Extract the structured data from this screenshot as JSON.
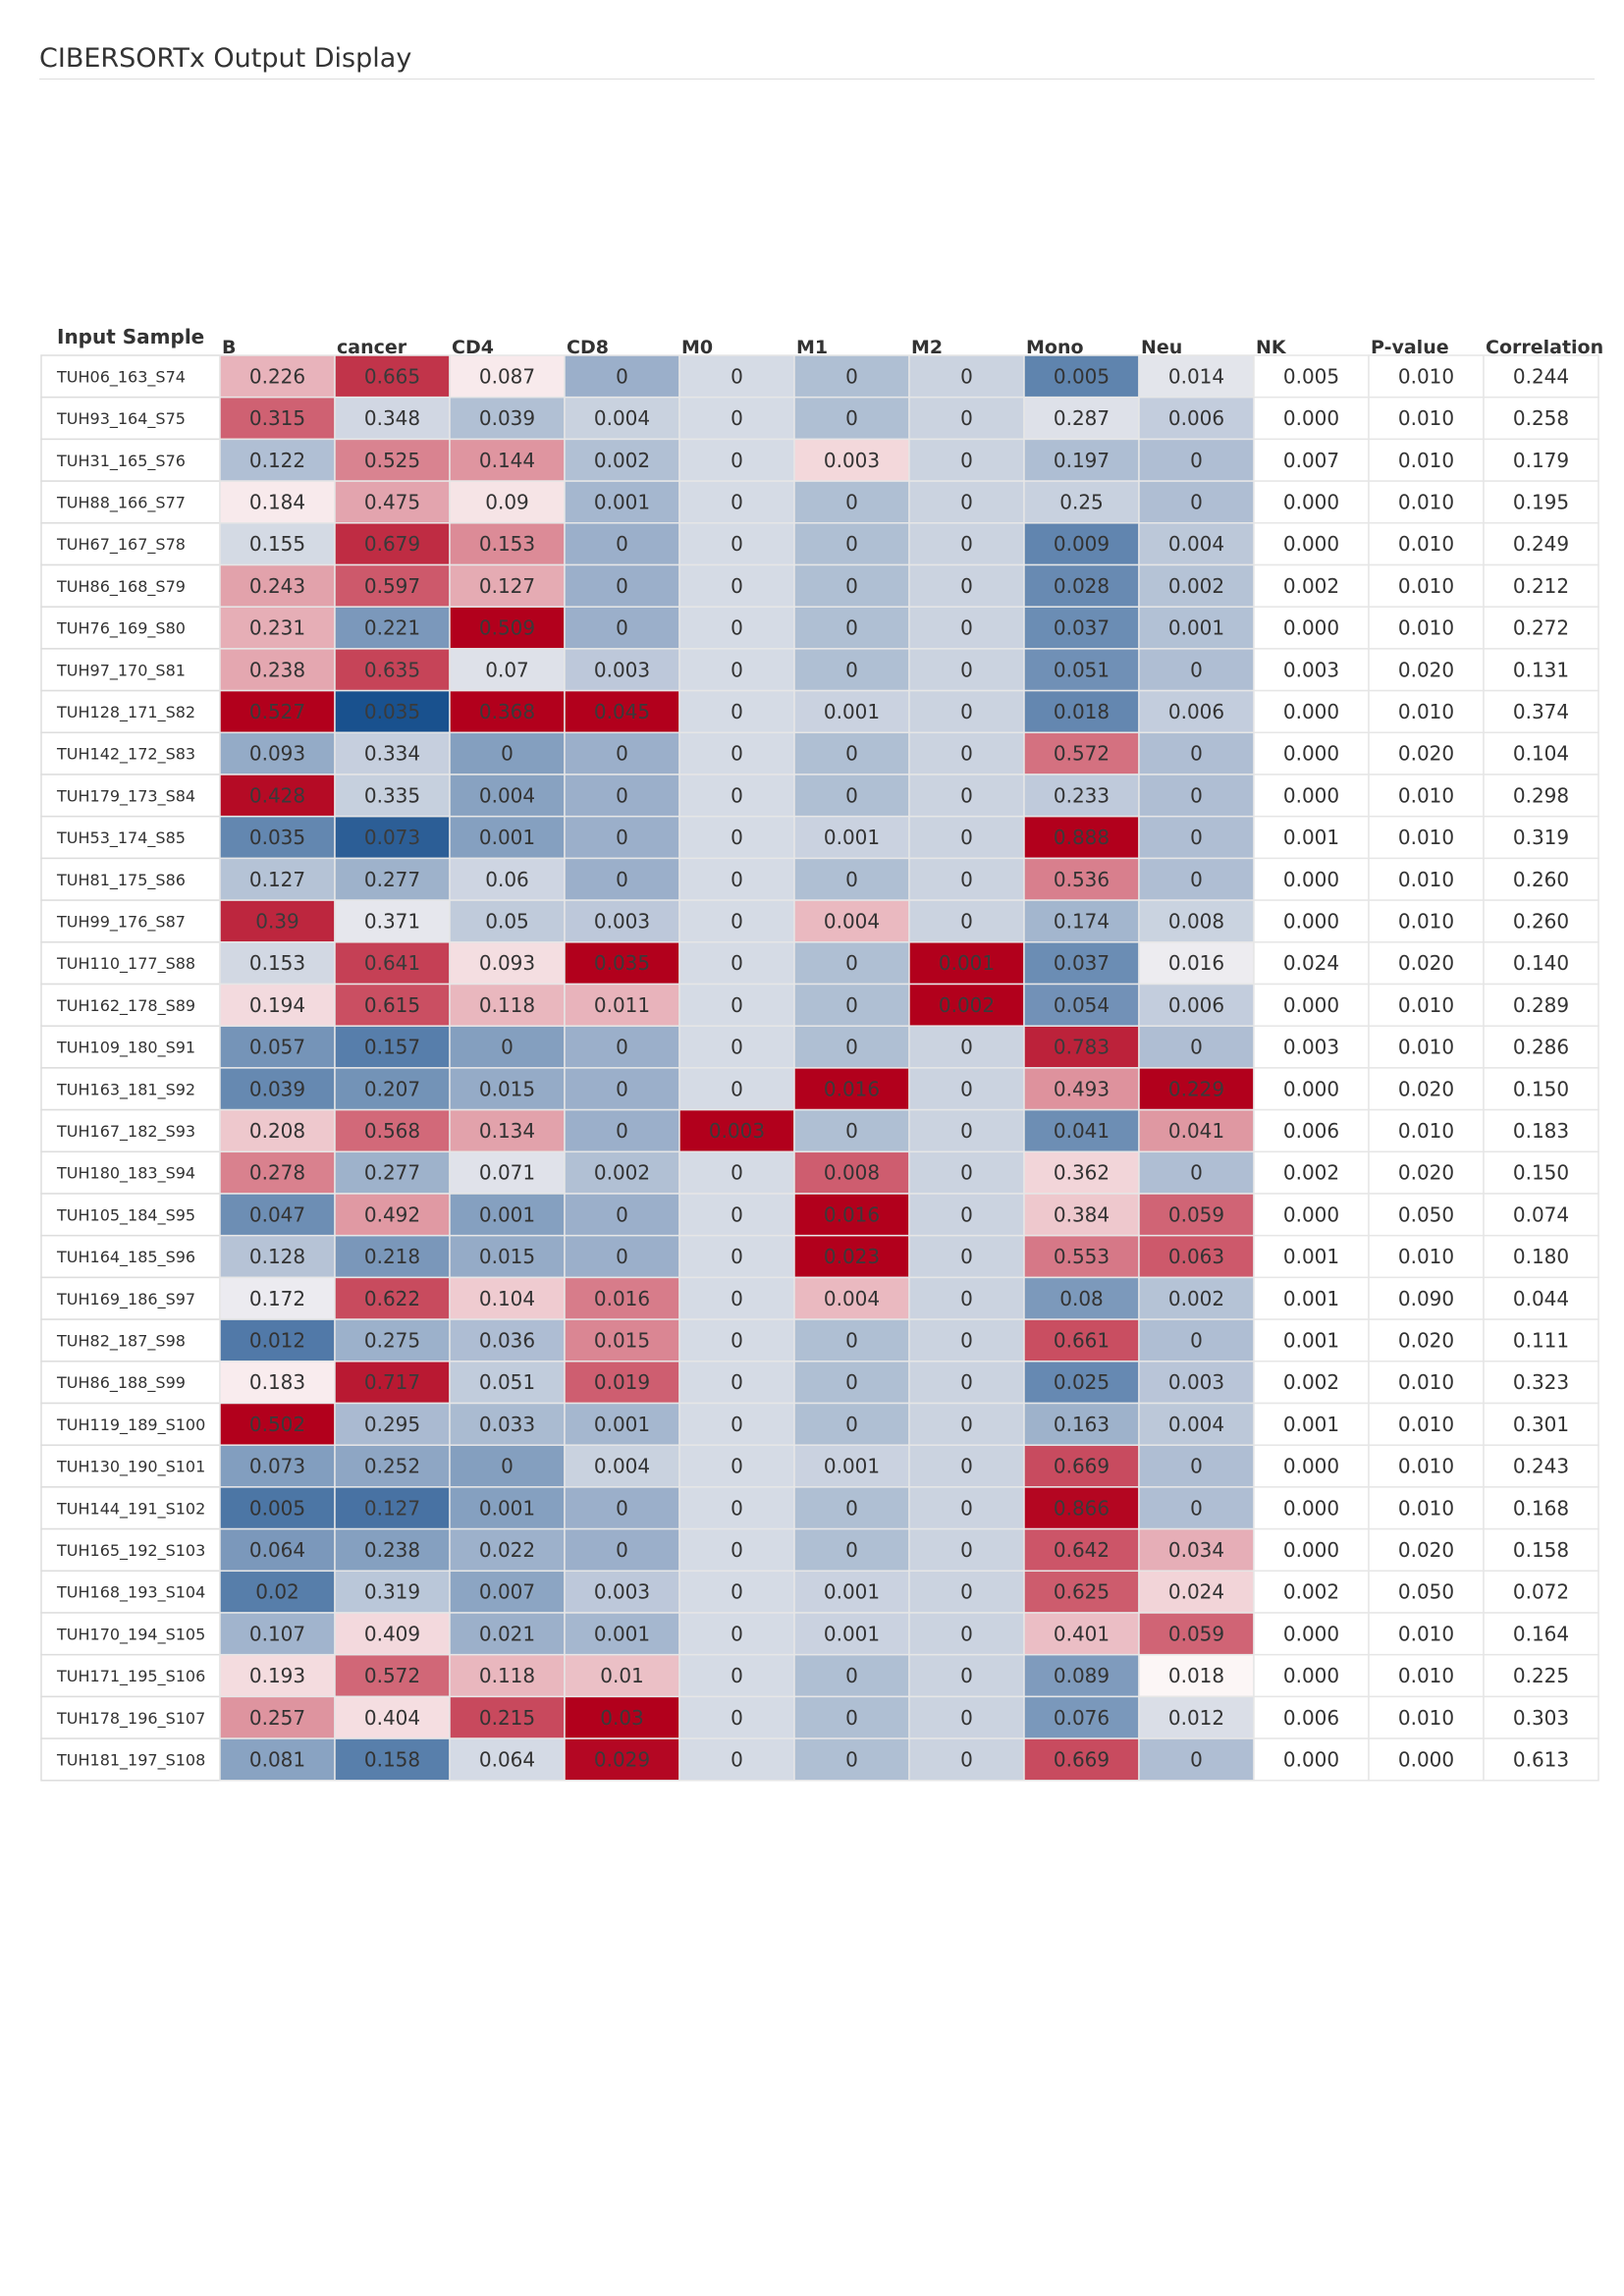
{
  "page": {
    "title": "CIBERSORTx Output Display"
  },
  "chart_data": {
    "type": "heatmap",
    "row_header": "Input Sample",
    "columns": [
      "B",
      "cancer",
      "CD4",
      "CD8",
      "M0",
      "M1",
      "M2",
      "Mono",
      "Neu",
      "NK",
      "P-value",
      "Correlation"
    ],
    "heat_columns": 9,
    "color_scale": {
      "low": "#0b4687",
      "mid": "#fcf7f7",
      "high": "#b2001c"
    },
    "rows": [
      {
        "sample": "TUH06_163_S74",
        "cells": [
          "0.226",
          "0.665",
          "0.087",
          "0",
          "0",
          "0",
          "0",
          "0.005",
          "0.014",
          "0.005",
          "0.010",
          "0.244"
        ]
      },
      {
        "sample": "TUH93_164_S75",
        "cells": [
          "0.315",
          "0.348",
          "0.039",
          "0.004",
          "0",
          "0",
          "0",
          "0.287",
          "0.006",
          "0.000",
          "0.010",
          "0.258"
        ]
      },
      {
        "sample": "TUH31_165_S76",
        "cells": [
          "0.122",
          "0.525",
          "0.144",
          "0.002",
          "0",
          "0.003",
          "0",
          "0.197",
          "0",
          "0.007",
          "0.010",
          "0.179"
        ]
      },
      {
        "sample": "TUH88_166_S77",
        "cells": [
          "0.184",
          "0.475",
          "0.09",
          "0.001",
          "0",
          "0",
          "0",
          "0.25",
          "0",
          "0.000",
          "0.010",
          "0.195"
        ]
      },
      {
        "sample": "TUH67_167_S78",
        "cells": [
          "0.155",
          "0.679",
          "0.153",
          "0",
          "0",
          "0",
          "0",
          "0.009",
          "0.004",
          "0.000",
          "0.010",
          "0.249"
        ]
      },
      {
        "sample": "TUH86_168_S79",
        "cells": [
          "0.243",
          "0.597",
          "0.127",
          "0",
          "0",
          "0",
          "0",
          "0.028",
          "0.002",
          "0.002",
          "0.010",
          "0.212"
        ]
      },
      {
        "sample": "TUH76_169_S80",
        "cells": [
          "0.231",
          "0.221",
          "0.509",
          "0",
          "0",
          "0",
          "0",
          "0.037",
          "0.001",
          "0.000",
          "0.010",
          "0.272"
        ]
      },
      {
        "sample": "TUH97_170_S81",
        "cells": [
          "0.238",
          "0.635",
          "0.07",
          "0.003",
          "0",
          "0",
          "0",
          "0.051",
          "0",
          "0.003",
          "0.020",
          "0.131"
        ]
      },
      {
        "sample": "TUH128_171_S82",
        "cells": [
          "0.527",
          "0.035",
          "0.368",
          "0.045",
          "0",
          "0.001",
          "0",
          "0.018",
          "0.006",
          "0.000",
          "0.010",
          "0.374"
        ]
      },
      {
        "sample": "TUH142_172_S83",
        "cells": [
          "0.093",
          "0.334",
          "0",
          "0",
          "0",
          "0",
          "0",
          "0.572",
          "0",
          "0.000",
          "0.020",
          "0.104"
        ]
      },
      {
        "sample": "TUH179_173_S84",
        "cells": [
          "0.428",
          "0.335",
          "0.004",
          "0",
          "0",
          "0",
          "0",
          "0.233",
          "0",
          "0.000",
          "0.010",
          "0.298"
        ]
      },
      {
        "sample": "TUH53_174_S85",
        "cells": [
          "0.035",
          "0.073",
          "0.001",
          "0",
          "0",
          "0.001",
          "0",
          "0.888",
          "0",
          "0.001",
          "0.010",
          "0.319"
        ]
      },
      {
        "sample": "TUH81_175_S86",
        "cells": [
          "0.127",
          "0.277",
          "0.06",
          "0",
          "0",
          "0",
          "0",
          "0.536",
          "0",
          "0.000",
          "0.010",
          "0.260"
        ]
      },
      {
        "sample": "TUH99_176_S87",
        "cells": [
          "0.39",
          "0.371",
          "0.05",
          "0.003",
          "0",
          "0.004",
          "0",
          "0.174",
          "0.008",
          "0.000",
          "0.010",
          "0.260"
        ]
      },
      {
        "sample": "TUH110_177_S88",
        "cells": [
          "0.153",
          "0.641",
          "0.093",
          "0.035",
          "0",
          "0",
          "0.001",
          "0.037",
          "0.016",
          "0.024",
          "0.020",
          "0.140"
        ]
      },
      {
        "sample": "TUH162_178_S89",
        "cells": [
          "0.194",
          "0.615",
          "0.118",
          "0.011",
          "0",
          "0",
          "0.002",
          "0.054",
          "0.006",
          "0.000",
          "0.010",
          "0.289"
        ]
      },
      {
        "sample": "TUH109_180_S91",
        "cells": [
          "0.057",
          "0.157",
          "0",
          "0",
          "0",
          "0",
          "0",
          "0.783",
          "0",
          "0.003",
          "0.010",
          "0.286"
        ]
      },
      {
        "sample": "TUH163_181_S92",
        "cells": [
          "0.039",
          "0.207",
          "0.015",
          "0",
          "0",
          "0.016",
          "0",
          "0.493",
          "0.229",
          "0.000",
          "0.020",
          "0.150"
        ]
      },
      {
        "sample": "TUH167_182_S93",
        "cells": [
          "0.208",
          "0.568",
          "0.134",
          "0",
          "0.003",
          "0",
          "0",
          "0.041",
          "0.041",
          "0.006",
          "0.010",
          "0.183"
        ]
      },
      {
        "sample": "TUH180_183_S94",
        "cells": [
          "0.278",
          "0.277",
          "0.071",
          "0.002",
          "0",
          "0.008",
          "0",
          "0.362",
          "0",
          "0.002",
          "0.020",
          "0.150"
        ]
      },
      {
        "sample": "TUH105_184_S95",
        "cells": [
          "0.047",
          "0.492",
          "0.001",
          "0",
          "0",
          "0.016",
          "0",
          "0.384",
          "0.059",
          "0.000",
          "0.050",
          "0.074"
        ]
      },
      {
        "sample": "TUH164_185_S96",
        "cells": [
          "0.128",
          "0.218",
          "0.015",
          "0",
          "0",
          "0.023",
          "0",
          "0.553",
          "0.063",
          "0.001",
          "0.010",
          "0.180"
        ]
      },
      {
        "sample": "TUH169_186_S97",
        "cells": [
          "0.172",
          "0.622",
          "0.104",
          "0.016",
          "0",
          "0.004",
          "0",
          "0.08",
          "0.002",
          "0.001",
          "0.090",
          "0.044"
        ]
      },
      {
        "sample": "TUH82_187_S98",
        "cells": [
          "0.012",
          "0.275",
          "0.036",
          "0.015",
          "0",
          "0",
          "0",
          "0.661",
          "0",
          "0.001",
          "0.020",
          "0.111"
        ]
      },
      {
        "sample": "TUH86_188_S99",
        "cells": [
          "0.183",
          "0.717",
          "0.051",
          "0.019",
          "0",
          "0",
          "0",
          "0.025",
          "0.003",
          "0.002",
          "0.010",
          "0.323"
        ]
      },
      {
        "sample": "TUH119_189_S100",
        "cells": [
          "0.502",
          "0.295",
          "0.033",
          "0.001",
          "0",
          "0",
          "0",
          "0.163",
          "0.004",
          "0.001",
          "0.010",
          "0.301"
        ]
      },
      {
        "sample": "TUH130_190_S101",
        "cells": [
          "0.073",
          "0.252",
          "0",
          "0.004",
          "0",
          "0.001",
          "0",
          "0.669",
          "0",
          "0.000",
          "0.010",
          "0.243"
        ]
      },
      {
        "sample": "TUH144_191_S102",
        "cells": [
          "0.005",
          "0.127",
          "0.001",
          "0",
          "0",
          "0",
          "0",
          "0.866",
          "0",
          "0.000",
          "0.010",
          "0.168"
        ]
      },
      {
        "sample": "TUH165_192_S103",
        "cells": [
          "0.064",
          "0.238",
          "0.022",
          "0",
          "0",
          "0",
          "0",
          "0.642",
          "0.034",
          "0.000",
          "0.020",
          "0.158"
        ]
      },
      {
        "sample": "TUH168_193_S104",
        "cells": [
          "0.02",
          "0.319",
          "0.007",
          "0.003",
          "0",
          "0.001",
          "0",
          "0.625",
          "0.024",
          "0.002",
          "0.050",
          "0.072"
        ]
      },
      {
        "sample": "TUH170_194_S105",
        "cells": [
          "0.107",
          "0.409",
          "0.021",
          "0.001",
          "0",
          "0.001",
          "0",
          "0.401",
          "0.059",
          "0.000",
          "0.010",
          "0.164"
        ]
      },
      {
        "sample": "TUH171_195_S106",
        "cells": [
          "0.193",
          "0.572",
          "0.118",
          "0.01",
          "0",
          "0",
          "0",
          "0.089",
          "0.018",
          "0.000",
          "0.010",
          "0.225"
        ]
      },
      {
        "sample": "TUH178_196_S107",
        "cells": [
          "0.257",
          "0.404",
          "0.215",
          "0.03",
          "0",
          "0",
          "0",
          "0.076",
          "0.012",
          "0.006",
          "0.010",
          "0.303"
        ]
      },
      {
        "sample": "TUH181_197_S108",
        "cells": [
          "0.081",
          "0.158",
          "0.064",
          "0.029",
          "0",
          "0",
          "0",
          "0.669",
          "0",
          "0.000",
          "0.000",
          "0.613"
        ]
      }
    ]
  }
}
